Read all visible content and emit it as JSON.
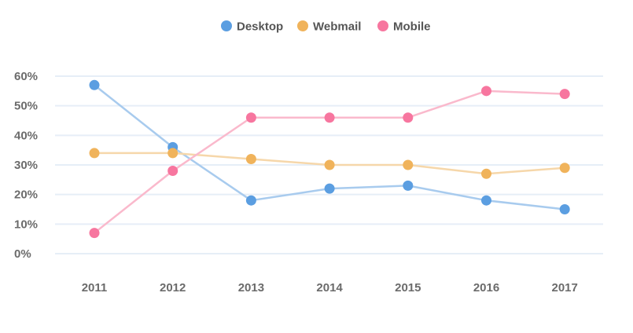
{
  "chart_data": {
    "type": "line",
    "categories": [
      "2011",
      "2012",
      "2013",
      "2014",
      "2015",
      "2016",
      "2017"
    ],
    "series": [
      {
        "name": "Desktop",
        "color": "#5b9ee1",
        "line_color": "#a8cbee",
        "values": [
          57,
          36,
          18,
          22,
          23,
          18,
          15
        ]
      },
      {
        "name": "Webmail",
        "color": "#f0b35b",
        "line_color": "#f6d7aa",
        "values": [
          34,
          34,
          32,
          30,
          30,
          27,
          29
        ]
      },
      {
        "name": "Mobile",
        "color": "#f7769f",
        "line_color": "#fab9cc",
        "values": [
          7,
          28,
          46,
          46,
          46,
          55,
          54
        ]
      }
    ],
    "y_ticks": [
      "0%",
      "10%",
      "20%",
      "30%",
      "40%",
      "50%",
      "60%"
    ],
    "ylim": [
      0,
      60
    ],
    "grid": true,
    "legend_position": "top-center",
    "title": "",
    "xlabel": "",
    "ylabel": ""
  }
}
